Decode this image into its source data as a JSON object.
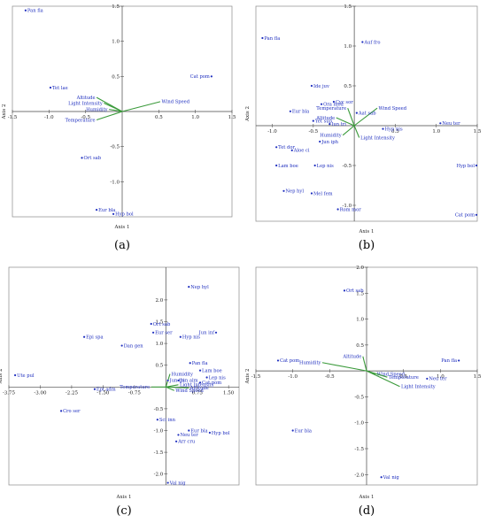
{
  "chart_data": [
    {
      "type": "scatter",
      "caption": "(a)",
      "xlabel": "Axis 1",
      "ylabel": "Axis 2",
      "xlim": [
        -1.5,
        1.5
      ],
      "ylim": [
        -1.5,
        1.5
      ],
      "xticks": [
        {
          "v": -1.5,
          "label": "-1.5"
        },
        {
          "v": -1.0,
          "label": "-1.0"
        },
        {
          "v": -0.5,
          "label": "-0.5"
        },
        {
          "v": 0.5,
          "label": "0.5"
        },
        {
          "v": 1.0,
          "label": "1.0"
        },
        {
          "v": 1.5,
          "label": "1.5"
        }
      ],
      "yticks": [
        {
          "v": 1.5,
          "label": "1.5"
        },
        {
          "v": 1.0,
          "label": "1.0"
        },
        {
          "v": 0.5,
          "label": "0.5"
        },
        {
          "v": -0.5,
          "label": "-0.5"
        },
        {
          "v": -1.0,
          "label": "-1.0"
        }
      ],
      "grid": false,
      "species": [
        {
          "label": "Pan fla",
          "x": -1.32,
          "y": 1.44
        },
        {
          "label": "Tet lae",
          "x": -0.98,
          "y": 0.34
        },
        {
          "label": "Cat pom",
          "x": 1.22,
          "y": 0.5
        },
        {
          "label": "Ort sab",
          "x": -0.55,
          "y": -0.66
        },
        {
          "label": "Eur bla",
          "x": -0.35,
          "y": -1.4
        },
        {
          "label": "Hyp bol",
          "x": -0.12,
          "y": -1.46
        }
      ],
      "vectors": [
        {
          "label": "Wind Speed",
          "x": 0.52,
          "y": 0.14
        },
        {
          "label": "Altitude",
          "x": -0.35,
          "y": 0.2
        },
        {
          "label": "Light Intensity",
          "x": -0.25,
          "y": 0.12
        },
        {
          "label": "Humidity",
          "x": -0.18,
          "y": 0.03
        },
        {
          "label": "Temperature",
          "x": -0.35,
          "y": -0.12
        }
      ]
    },
    {
      "type": "scatter",
      "caption": "(b)",
      "xlabel": "Axis 1",
      "ylabel": "Axis 2",
      "xlim": [
        -1.2,
        1.5
      ],
      "ylim": [
        -1.2,
        1.5
      ],
      "xticks": [
        {
          "v": -1.0,
          "label": "-1.0"
        },
        {
          "v": -0.5,
          "label": "-0.5"
        },
        {
          "v": 0.5,
          "label": "0.5"
        },
        {
          "v": 1.0,
          "label": "1.0"
        },
        {
          "v": 1.5,
          "label": "1.5"
        }
      ],
      "yticks": [
        {
          "v": 1.5,
          "label": "1.5"
        },
        {
          "v": 1.0,
          "label": "1.0"
        },
        {
          "v": 0.5,
          "label": "0.5"
        },
        {
          "v": -0.5,
          "label": "-0.5"
        },
        {
          "v": -1.0,
          "label": "-1.0"
        }
      ],
      "grid": false,
      "species": [
        {
          "label": "Pan fla",
          "x": -1.12,
          "y": 1.1
        },
        {
          "label": "Auf fro",
          "x": 0.1,
          "y": 1.05
        },
        {
          "label": "Ide juv",
          "x": -0.52,
          "y": 0.5
        },
        {
          "label": "Cyc sor",
          "x": -0.25,
          "y": 0.3
        },
        {
          "label": "Ora med",
          "x": -0.4,
          "y": 0.27
        },
        {
          "label": "Eur bla",
          "x": -0.78,
          "y": 0.18
        },
        {
          "label": "Aat sab",
          "x": 0.03,
          "y": 0.16
        },
        {
          "label": "Yet sup",
          "x": -0.5,
          "y": 0.06
        },
        {
          "label": "Iun tri",
          "x": -0.3,
          "y": 0.02
        },
        {
          "label": "Neu ter",
          "x": 1.05,
          "y": 0.03
        },
        {
          "label": "Hyp nis",
          "x": 0.35,
          "y": -0.04
        },
        {
          "label": "Jun iph",
          "x": -0.42,
          "y": -0.2
        },
        {
          "label": "Tet dor",
          "x": -0.95,
          "y": -0.27
        },
        {
          "label": "Aloe ci",
          "x": -0.76,
          "y": -0.31
        },
        {
          "label": "Lam boe",
          "x": -0.95,
          "y": -0.5
        },
        {
          "label": "Lep nis",
          "x": -0.48,
          "y": -0.5
        },
        {
          "label": "Hyp bol",
          "x": 2.2,
          "y": -0.5
        },
        {
          "label": "Nep hyl",
          "x": -0.86,
          "y": -0.82
        },
        {
          "label": "Mel fem",
          "x": -0.52,
          "y": -0.85
        },
        {
          "label": "Rom mor",
          "x": -0.2,
          "y": -1.05
        },
        {
          "label": "Cat pom",
          "x": 2.15,
          "y": -1.12
        }
      ],
      "vectors": [
        {
          "label": "Wind Speed",
          "x": 0.28,
          "y": 0.22
        },
        {
          "label": "Temperature",
          "x": -0.08,
          "y": 0.22
        },
        {
          "label": "Altitude",
          "x": -0.22,
          "y": 0.1
        },
        {
          "label": "Humidity",
          "x": -0.14,
          "y": -0.12
        },
        {
          "label": "Light Intensity",
          "x": 0.06,
          "y": -0.15
        }
      ]
    },
    {
      "type": "scatter",
      "caption": "(c)",
      "xlabel": "Axis 1",
      "ylabel": "Axis 2",
      "xlim": [
        -3.75,
        1.75
      ],
      "ylim": [
        -2.25,
        2.75
      ],
      "xticks": [
        {
          "v": -3.75,
          "label": "-3.75"
        },
        {
          "v": -3.0,
          "label": "-3.00"
        },
        {
          "v": -2.25,
          "label": "-2.25"
        },
        {
          "v": -1.5,
          "label": "-1.50"
        },
        {
          "v": -0.75,
          "label": "-0.75"
        },
        {
          "v": 0.75,
          "label": "0.75"
        },
        {
          "v": 1.5,
          "label": "1.50"
        }
      ],
      "yticks": [
        {
          "v": 2.0,
          "label": "2.0"
        },
        {
          "v": 1.5,
          "label": "1.5"
        },
        {
          "v": 1.0,
          "label": "1.0"
        },
        {
          "v": 0.5,
          "label": "0.5"
        },
        {
          "v": -0.5,
          "label": "-0.5"
        },
        {
          "v": -1.0,
          "label": "-1.0"
        },
        {
          "v": -1.5,
          "label": "-1.5"
        },
        {
          "v": -2.0,
          "label": "-2.0"
        }
      ],
      "grid": false,
      "species": [
        {
          "label": "Nep hyl",
          "x": 0.55,
          "y": 2.3
        },
        {
          "label": "Ort sab",
          "x": -0.35,
          "y": 1.45
        },
        {
          "label": "Eur ser",
          "x": -0.3,
          "y": 1.25
        },
        {
          "label": "Hyp nis",
          "x": 0.35,
          "y": 1.15
        },
        {
          "label": "Jun inf",
          "x": 1.2,
          "y": 1.25
        },
        {
          "label": "Epi spa",
          "x": -1.95,
          "y": 1.15
        },
        {
          "label": "Dan gen",
          "x": -1.05,
          "y": 0.95
        },
        {
          "label": "Pan fla",
          "x": 0.58,
          "y": 0.55
        },
        {
          "label": "Lam boe",
          "x": 0.82,
          "y": 0.38
        },
        {
          "label": "Lep nis",
          "x": 0.98,
          "y": 0.22
        },
        {
          "label": "Jun tri",
          "x": 0.05,
          "y": 0.15
        },
        {
          "label": "Jun alm",
          "x": 0.3,
          "y": 0.15
        },
        {
          "label": "Cat pom",
          "x": 0.82,
          "y": 0.1
        },
        {
          "label": "Ute pul",
          "x": -3.6,
          "y": 0.27
        },
        {
          "label": "Epi adm",
          "x": -1.7,
          "y": -0.05
        },
        {
          "label": "Cro ser",
          "x": -2.5,
          "y": -0.55
        },
        {
          "label": "Sci inn",
          "x": -0.2,
          "y": -0.75
        },
        {
          "label": "Eur bla",
          "x": 0.55,
          "y": -1.0
        },
        {
          "label": "Hyp bol",
          "x": 1.05,
          "y": -1.05
        },
        {
          "label": "Neu ter",
          "x": 0.3,
          "y": -1.1
        },
        {
          "label": "Arr cru",
          "x": 0.25,
          "y": -1.25
        },
        {
          "label": "Val nig",
          "x": 0.05,
          "y": -2.2
        }
      ],
      "vectors": [
        {
          "label": "Humidity",
          "x": 0.1,
          "y": 0.3
        },
        {
          "label": "Temperature",
          "x": -0.35,
          "y": 0.0
        },
        {
          "label": "Wind Speed",
          "x": 0.2,
          "y": -0.08
        },
        {
          "label": "Altitude",
          "x": 0.55,
          "y": -0.02
        },
        {
          "label": "Light Intensity",
          "x": 0.3,
          "y": 0.05
        }
      ]
    },
    {
      "type": "scatter",
      "caption": "(d)",
      "xlabel": "Axis 1",
      "ylabel": "Axis 2",
      "xlim": [
        -1.5,
        1.5
      ],
      "ylim": [
        -2.2,
        2.0
      ],
      "xticks": [
        {
          "v": -1.5,
          "label": "-1.5"
        },
        {
          "v": -1.0,
          "label": "-1.0"
        },
        {
          "v": -0.5,
          "label": "-0.5"
        },
        {
          "v": 0.5,
          "label": "0.5"
        },
        {
          "v": 1.0,
          "label": "1.0"
        },
        {
          "v": 1.5,
          "label": "1.5"
        }
      ],
      "yticks": [
        {
          "v": 2.0,
          "label": "2.0"
        },
        {
          "v": 1.5,
          "label": "1.5"
        },
        {
          "v": 1.0,
          "label": "1.0"
        },
        {
          "v": 0.5,
          "label": "0.5"
        },
        {
          "v": -0.5,
          "label": "-0.5"
        },
        {
          "v": -1.0,
          "label": "-1.0"
        },
        {
          "v": -1.5,
          "label": "-1.5"
        },
        {
          "v": -2.0,
          "label": "-2.0"
        }
      ],
      "grid": false,
      "species": [
        {
          "label": "Ort sab",
          "x": -0.3,
          "y": 1.55
        },
        {
          "label": "Cat pom",
          "x": -1.2,
          "y": 0.2
        },
        {
          "label": "Pan fla",
          "x": 1.25,
          "y": 0.2
        },
        {
          "label": "Neu ter",
          "x": 0.82,
          "y": -0.15
        },
        {
          "label": "Eur bla",
          "x": -1.0,
          "y": -1.15
        },
        {
          "label": "Val nig",
          "x": 0.2,
          "y": -2.05
        }
      ],
      "vectors": [
        {
          "label": "Altitude",
          "x": -0.05,
          "y": 0.28
        },
        {
          "label": "Humidity",
          "x": -0.6,
          "y": 0.16
        },
        {
          "label": "Wind Speed",
          "x": 0.12,
          "y": -0.06
        },
        {
          "label": "Temperature",
          "x": 0.28,
          "y": -0.12
        },
        {
          "label": "Light Intensity",
          "x": 0.45,
          "y": -0.3
        }
      ]
    }
  ]
}
